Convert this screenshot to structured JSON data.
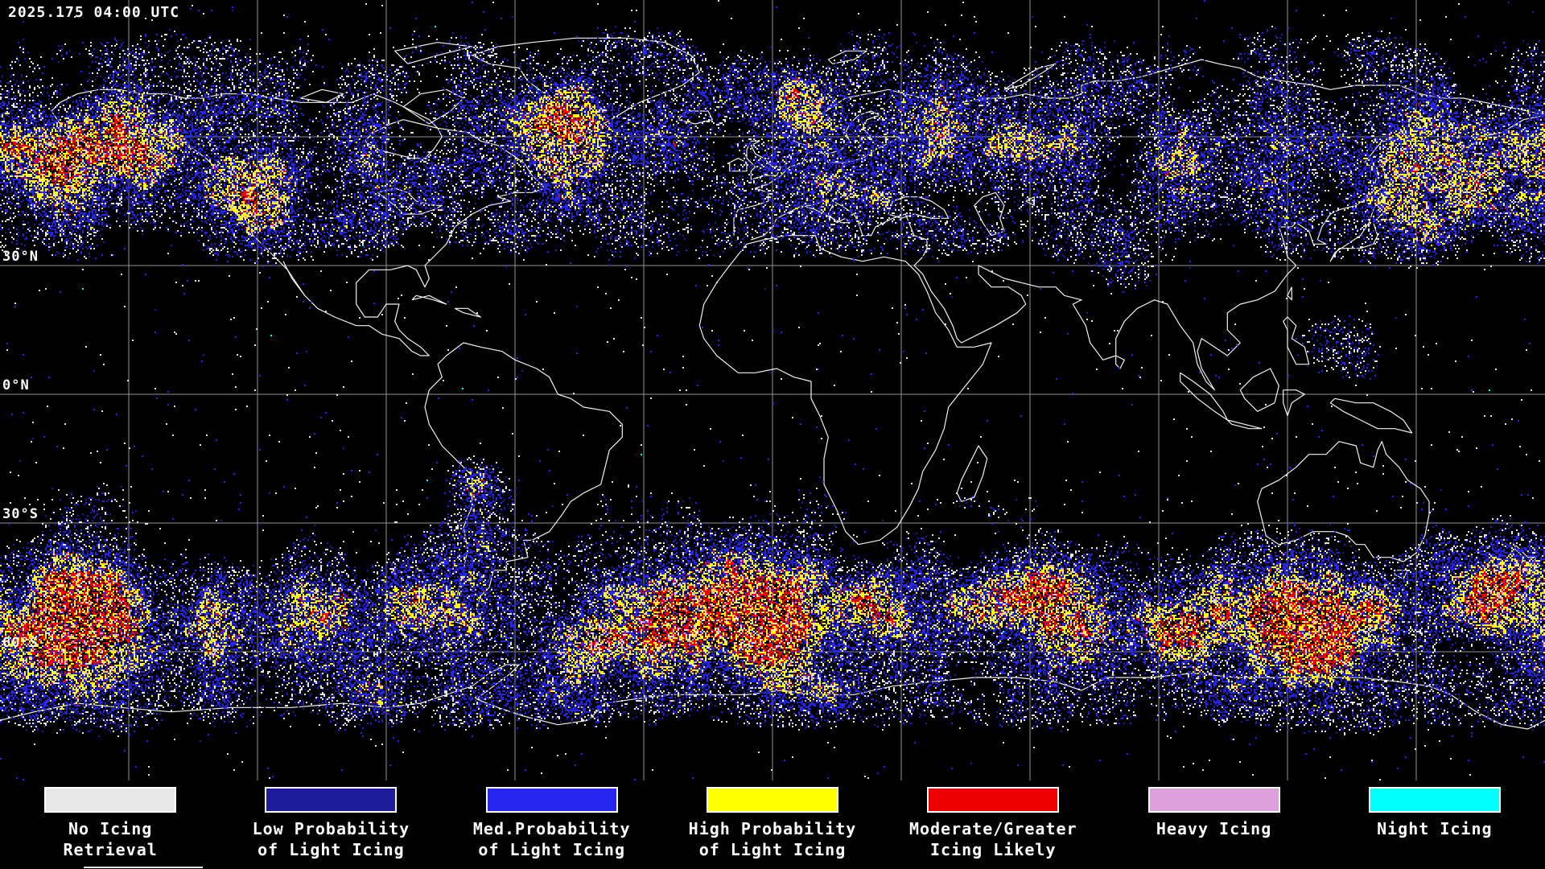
{
  "header": {
    "timestamp": "2025.175 04:00 UTC"
  },
  "map": {
    "colors": {
      "background": "#000000",
      "grid": "#b9b9b9",
      "coastline": "#ffffff"
    },
    "lat_labels": [
      {
        "text": "30°N",
        "lat": 30
      },
      {
        "text": "0°N",
        "lat": 0
      },
      {
        "text": "30°S",
        "lat": -30
      },
      {
        "text": "60°S",
        "lat": -60
      }
    ]
  },
  "legend": {
    "items": [
      {
        "name": "no-icing-retrieval",
        "color": "#e8e8e8",
        "line1": "No Icing",
        "line2": "Retrieval"
      },
      {
        "name": "low-probability-light-icing",
        "color": "#1c1c9c",
        "line1": "Low Probability",
        "line2": "of Light Icing"
      },
      {
        "name": "med-probability-light-icing",
        "color": "#2626ee",
        "line1": "Med.Probability",
        "line2": "of Light Icing"
      },
      {
        "name": "high-probability-light-icing",
        "color": "#ffff00",
        "line1": "High Probability",
        "line2": "of Light Icing"
      },
      {
        "name": "moderate-greater-icing-likely",
        "color": "#ee0000",
        "line1": "Moderate/Greater",
        "line2": "Icing Likely"
      },
      {
        "name": "heavy-icing",
        "color": "#dda0dd",
        "line1": "Heavy Icing",
        "line2": ""
      },
      {
        "name": "night-icing",
        "color": "#00ffff",
        "line1": "Night Icing",
        "line2": ""
      }
    ]
  }
}
